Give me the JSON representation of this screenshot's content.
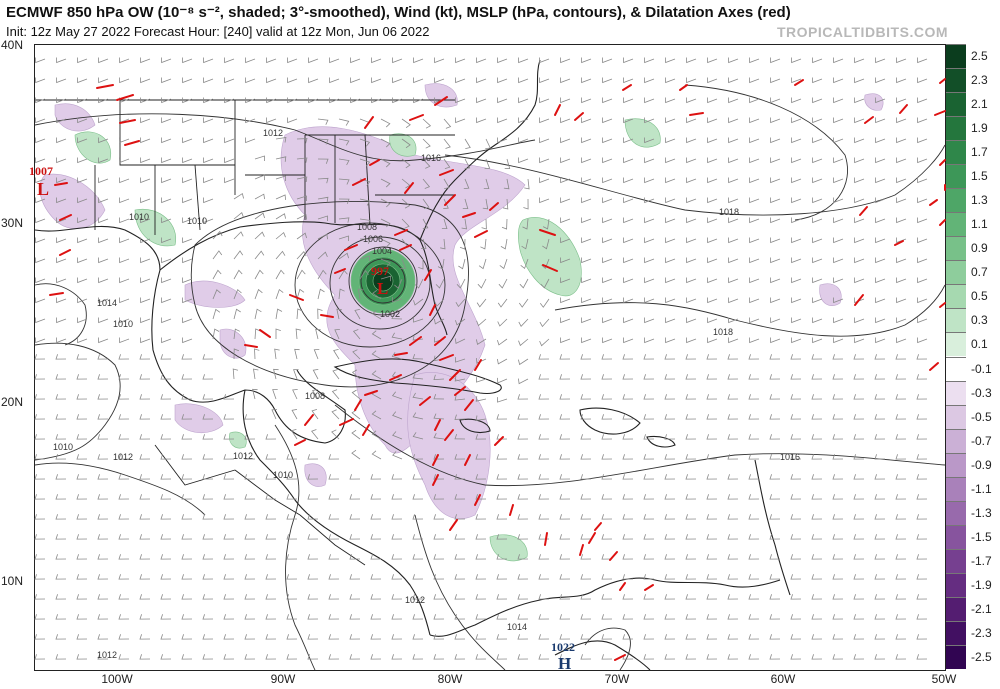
{
  "header": {
    "title": "ECMWF 850 hPa OW (10⁻⁸ s⁻², shaded; 3°-smoothed), Wind (kt), MSLP (hPa, contours), & Dilatation Axes (red)",
    "subtitle": "Init: 12z May 27 2022   Forecast Hour: [240]   valid at 12z Mon, Jun 06 2022",
    "brand": "TROPICALTIDBITS.COM"
  },
  "map": {
    "lat_labels": [
      "40N",
      "30N",
      "20N",
      "10N"
    ],
    "lon_labels": [
      "100W",
      "90W",
      "80W",
      "70W",
      "60W",
      "50W"
    ],
    "pressure_labels": [
      "1012",
      "1016",
      "1010",
      "1010",
      "1008",
      "1006",
      "1004",
      "1002",
      "1014",
      "1010",
      "1018",
      "1018",
      "1008",
      "1010",
      "1012",
      "1012",
      "1010",
      "1016",
      "1012",
      "1014",
      "1012"
    ],
    "lows": [
      {
        "value": "1007",
        "symbol": "L",
        "color": "#cc1111"
      },
      {
        "value": "997",
        "symbol": "L",
        "color": "#cc1111"
      }
    ],
    "highs": [
      {
        "value": "1022",
        "symbol": "H",
        "color": "#1a3a6e"
      }
    ]
  },
  "colorbar": {
    "ticks": [
      "2.5",
      "2.3",
      "2.1",
      "1.9",
      "1.7",
      "1.5",
      "1.3",
      "1.1",
      "0.9",
      "0.7",
      "0.5",
      "0.3",
      "0.1",
      "-0.1",
      "-0.3",
      "-0.5",
      "-0.7",
      "-0.9",
      "-1.1",
      "-1.3",
      "-1.5",
      "-1.7",
      "-1.9",
      "-2.1",
      "-2.3",
      "-2.5"
    ],
    "colors": [
      "#0b3d1e",
      "#124f28",
      "#1a6332",
      "#24763d",
      "#2f874a",
      "#3d9758",
      "#4ea667",
      "#62b477",
      "#78c189",
      "#8ecd9c",
      "#a6d9b0",
      "#bfe4c6",
      "#d9efdc",
      "#ffffff",
      "#ecdff0",
      "#dcc8e3",
      "#cbb0d6",
      "#ba98c8",
      "#a981ba",
      "#986aac",
      "#87549e",
      "#764090",
      "#652d81",
      "#541d71",
      "#421062",
      "#310552"
    ]
  }
}
